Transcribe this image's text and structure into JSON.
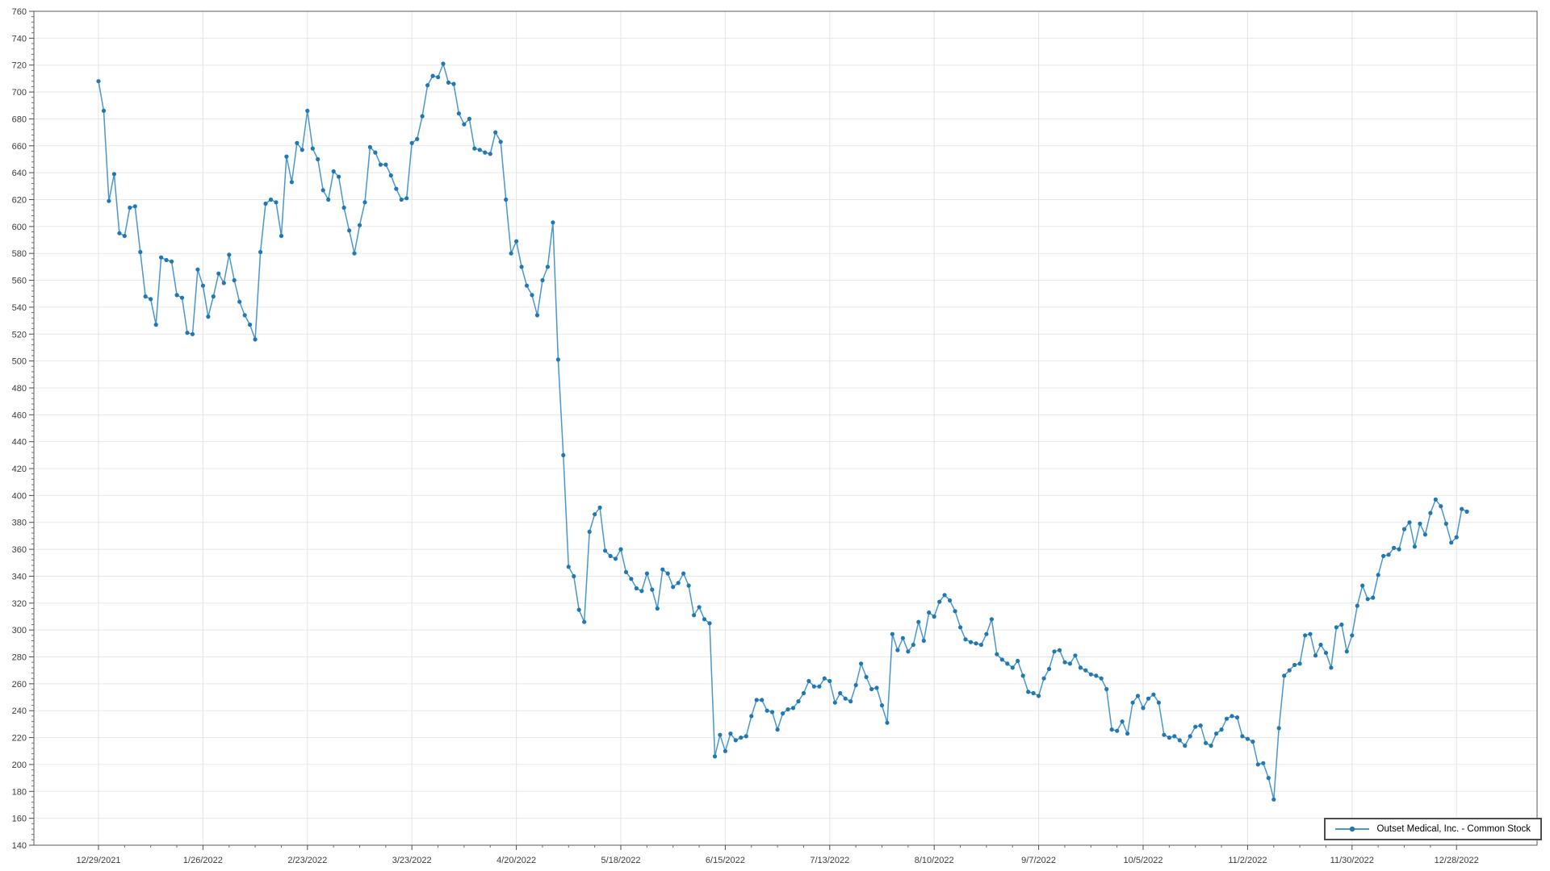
{
  "chart_data": {
    "type": "line",
    "title": "",
    "xlabel": "",
    "ylabel": "",
    "legend": {
      "position": "bottom-right",
      "entries": [
        "Outset Medical, Inc. - Common Stock"
      ]
    },
    "series_name": "Outset Medical, Inc. - Common Stock",
    "grid": true,
    "ylim": [
      140,
      760
    ],
    "y_tick_step": 20,
    "y_ticks": [
      140,
      160,
      180,
      200,
      220,
      240,
      260,
      280,
      300,
      320,
      340,
      360,
      380,
      400,
      420,
      440,
      460,
      480,
      500,
      520,
      540,
      560,
      580,
      600,
      620,
      640,
      660,
      680,
      700,
      720,
      740,
      760
    ],
    "x_tick_labels": [
      "12/29/2021",
      "1/26/2022",
      "2/23/2022",
      "3/23/2022",
      "4/20/2022",
      "5/18/2022",
      "6/15/2022",
      "7/13/2022",
      "8/10/2022",
      "9/7/2022",
      "10/5/2022",
      "11/2/2022",
      "11/30/2022",
      "12/28/2022"
    ],
    "x_tick_interval": 20,
    "x_minor_interval": 5,
    "y_minor_step": 4,
    "line_color": "#4a97cd",
    "marker_color": "#1f77b4",
    "values": [
      708,
      686,
      619,
      639,
      595,
      593,
      614,
      615,
      581,
      548,
      546,
      527,
      577,
      575,
      574,
      549,
      547,
      521,
      520,
      568,
      556,
      533,
      548,
      565,
      558,
      579,
      560,
      544,
      534,
      527,
      516,
      581,
      617,
      620,
      618,
      593,
      652,
      633,
      662,
      657,
      686,
      658,
      650,
      627,
      620,
      641,
      637,
      614,
      597,
      580,
      601,
      618,
      659,
      655,
      646,
      646,
      638,
      628,
      620,
      621,
      662,
      665,
      682,
      705,
      712,
      711,
      721,
      707,
      706,
      684,
      676,
      680,
      658,
      657,
      655,
      654,
      670,
      663,
      620,
      580,
      589,
      570,
      556,
      549,
      534,
      560,
      570,
      603,
      501,
      430,
      347,
      340,
      315,
      306,
      373,
      386,
      391,
      359,
      355,
      353,
      360,
      343,
      338,
      331,
      329,
      342,
      330,
      316,
      345,
      342,
      332,
      335,
      342,
      333,
      311,
      317,
      308,
      305,
      206,
      222,
      210,
      223,
      218,
      220,
      221,
      236,
      248,
      248,
      240,
      239,
      226,
      238,
      241,
      242,
      247,
      253,
      262,
      258,
      258,
      264,
      262,
      246,
      253,
      249,
      247,
      259,
      275,
      265,
      256,
      257,
      244,
      231,
      297,
      285,
      294,
      284,
      289,
      306,
      292,
      313,
      310,
      321,
      326,
      322,
      314,
      302,
      293,
      291,
      290,
      289,
      297,
      308,
      282,
      278,
      275,
      272,
      277,
      266,
      254,
      253,
      251,
      264,
      271,
      284,
      285,
      276,
      275,
      281,
      272,
      270,
      267,
      266,
      264,
      256,
      226,
      225,
      232,
      223,
      246,
      251,
      242,
      249,
      252,
      246,
      222,
      220,
      221,
      218,
      214,
      221,
      228,
      229,
      216,
      214,
      223,
      226,
      234,
      236,
      235,
      221,
      219,
      217,
      200,
      201,
      190,
      174,
      227,
      266,
      270,
      274,
      275,
      296,
      297,
      281,
      289,
      283,
      272,
      302,
      304,
      284,
      296,
      318,
      333,
      323,
      324,
      341,
      355,
      356,
      361,
      360,
      375,
      380,
      362,
      379,
      371,
      387,
      397,
      392,
      379,
      365,
      369,
      390,
      388
    ]
  }
}
